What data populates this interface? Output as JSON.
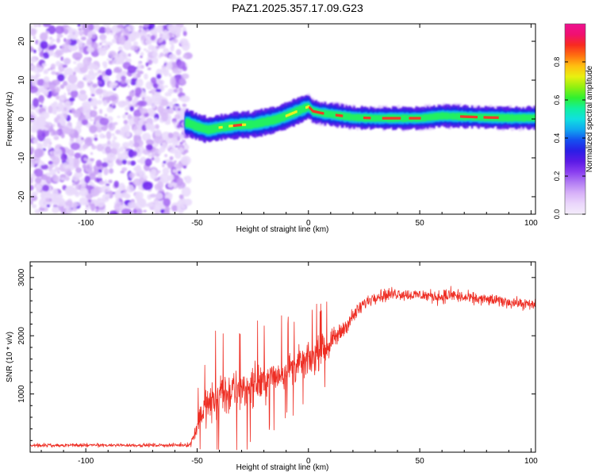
{
  "figure": {
    "title": "PAZ1.2025.357.17.09.G23"
  },
  "chart_data": [
    {
      "type": "heatmap",
      "title": "PAZ1.2025.357.17.09.G23",
      "xlabel": "Height of straight line (km)",
      "ylabel": "Frequency (Hz)",
      "xlim": [
        -125,
        102
      ],
      "ylim": [
        -24.5,
        24.5
      ],
      "xticks": [
        -100,
        -50,
        0,
        50,
        100
      ],
      "yticks": [
        -20,
        -10,
        0,
        10,
        20
      ],
      "noise_region_x": [
        -125,
        -54
      ],
      "trace": {
        "x": [
          -54,
          -50,
          -45,
          -40,
          -35,
          -30,
          -25,
          -20,
          -15,
          -10,
          -5,
          0,
          2,
          6,
          10,
          15,
          20,
          30,
          40,
          50,
          55,
          60,
          70,
          80,
          90,
          102
        ],
        "frequency": [
          -1,
          -2,
          -2.8,
          -2.2,
          -1.8,
          -1.5,
          -1.4,
          -0.8,
          -0.2,
          0.8,
          2.0,
          3.2,
          2.0,
          1.5,
          1.2,
          0.8,
          0.4,
          0.2,
          0.2,
          0.2,
          0.5,
          0.8,
          0.6,
          0.4,
          0.3,
          0.3
        ]
      },
      "colorbar": {
        "label": "Normalized spectral amplitude",
        "min": 0.0,
        "max": 1.0,
        "ticks": [
          "0.0",
          "0.2",
          "0.4",
          "0.6",
          "0.8"
        ],
        "colors": [
          "#f4ecfb",
          "#ead6fb",
          "#d7b1f8",
          "#b27cf4",
          "#8a3ef0",
          "#5b1ae6",
          "#2a1ee6",
          "#1450f0",
          "#10a8f0",
          "#10e0e0",
          "#10f0a0",
          "#30f030",
          "#90f010",
          "#e8f010",
          "#ffc010",
          "#ff7010",
          "#f82a20",
          "#f01070",
          "#ee1090"
        ]
      }
    },
    {
      "type": "line",
      "xlabel": "Height of straight line (km)",
      "ylabel": "SNR (10 * v/v)",
      "xlim": [
        -125,
        102
      ],
      "ylim": [
        0,
        3270
      ],
      "xticks": [
        -100,
        -50,
        0,
        50,
        100
      ],
      "yticks": [
        1000,
        2000,
        3000
      ],
      "color": "#ee2e24",
      "envelope": {
        "x": [
          -125,
          -60,
          -53,
          -50,
          -48,
          -45,
          -40,
          -35,
          -30,
          -25,
          -20,
          -15,
          -10,
          -5,
          0,
          5,
          10,
          15,
          20,
          25,
          30,
          35,
          40,
          45,
          50,
          55,
          60,
          65,
          70,
          80,
          90,
          102
        ],
        "center": [
          120,
          120,
          130,
          450,
          700,
          800,
          980,
          1020,
          1050,
          1150,
          1220,
          1300,
          1400,
          1500,
          1580,
          1700,
          1880,
          2080,
          2330,
          2550,
          2680,
          2700,
          2730,
          2700,
          2700,
          2680,
          2670,
          2700,
          2650,
          2620,
          2580,
          2520
        ],
        "amp": [
          45,
          45,
          60,
          250,
          360,
          460,
          600,
          580,
          560,
          520,
          480,
          460,
          440,
          420,
          420,
          400,
          330,
          260,
          200,
          170,
          160,
          170,
          160,
          150,
          150,
          160,
          180,
          200,
          160,
          150,
          140,
          140
        ]
      }
    }
  ]
}
